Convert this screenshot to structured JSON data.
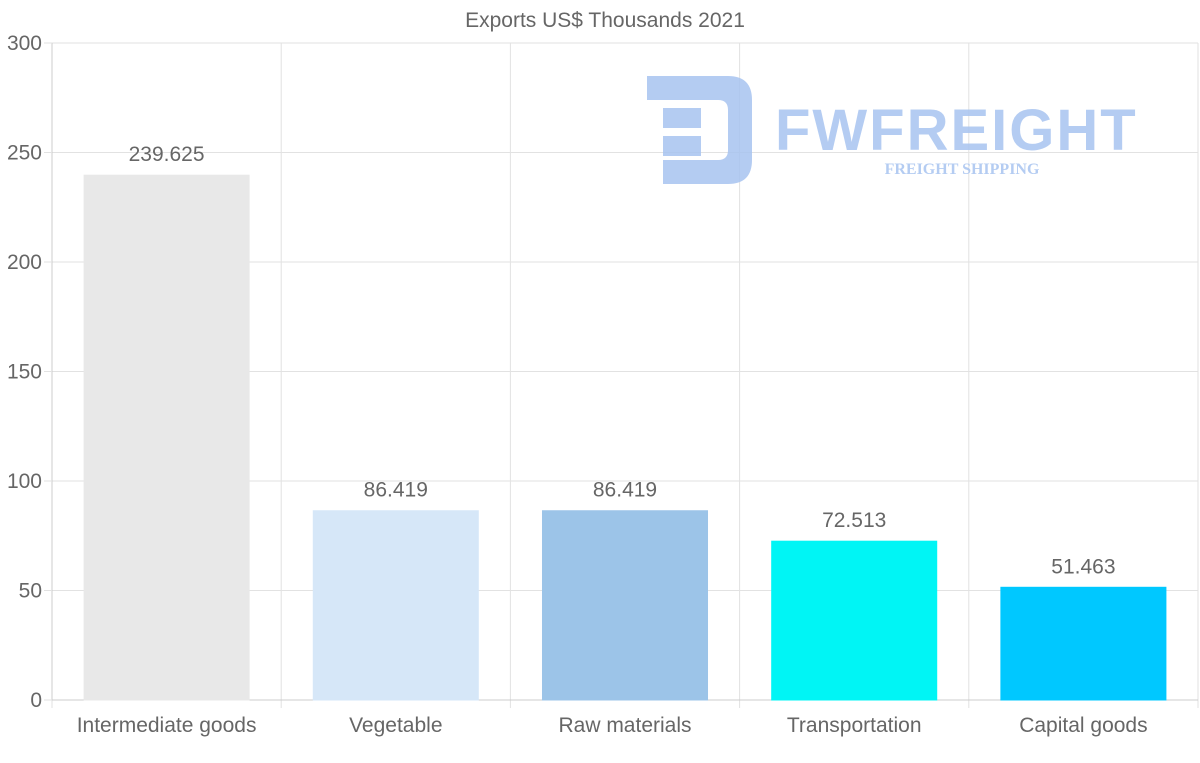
{
  "chart_data": {
    "type": "bar",
    "title": "Exports US$ Thousands 2021",
    "xlabel": "",
    "ylabel": "",
    "ylim": [
      0,
      300
    ],
    "yticks": [
      0,
      50,
      100,
      150,
      200,
      250,
      300
    ],
    "grid": true,
    "categories": [
      "Intermediate goods",
      "Vegetable",
      "Raw materials",
      "Transportation",
      "Capital goods"
    ],
    "values": [
      239.625,
      86.419,
      86.419,
      72.513,
      51.463
    ],
    "value_labels": [
      "239.625",
      "86.419",
      "86.419",
      "72.513",
      "51.463"
    ],
    "bar_colors": [
      "#e8e8e8",
      "#d6e7f8",
      "#9cc4e8",
      "#00f5f5",
      "#00c8ff"
    ]
  },
  "watermark": {
    "brand": "FWFREIGHT",
    "tagline": "FREIGHT SHIPPING",
    "color": "#a8c4f0"
  }
}
